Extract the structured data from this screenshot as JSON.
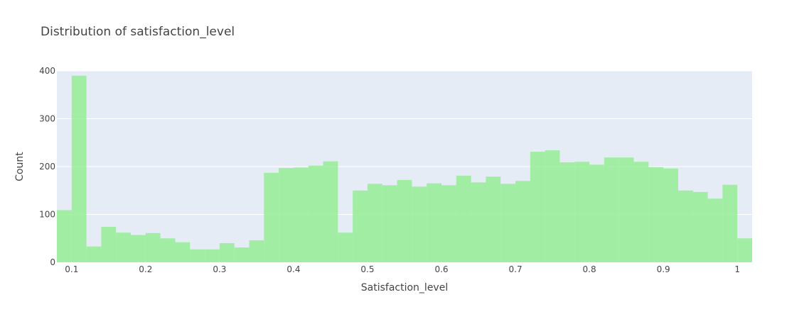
{
  "chart_data": {
    "type": "bar",
    "title": "Distribution of satisfaction_level",
    "xlabel": "Satisfaction_level",
    "ylabel": "Count",
    "xlim": [
      0.08,
      1.02
    ],
    "ylim": [
      0,
      400
    ],
    "x_ticks": [
      0.1,
      0.2,
      0.3,
      0.4,
      0.5,
      0.6,
      0.7,
      0.8,
      0.9,
      1
    ],
    "x_tick_labels": [
      "0.1",
      "0.2",
      "0.3",
      "0.4",
      "0.5",
      "0.6",
      "0.7",
      "0.8",
      "0.9",
      "1"
    ],
    "y_ticks": [
      0,
      100,
      200,
      300,
      400
    ],
    "y_tick_labels": [
      "0",
      "100",
      "200",
      "300",
      "400"
    ],
    "grid": true,
    "bin_width": 0.02,
    "bin_starts": [
      0.08,
      0.1,
      0.12,
      0.14,
      0.16,
      0.18,
      0.2,
      0.22,
      0.24,
      0.26,
      0.28,
      0.3,
      0.32,
      0.34,
      0.36,
      0.38,
      0.4,
      0.42,
      0.44,
      0.46,
      0.48,
      0.5,
      0.52,
      0.54,
      0.56,
      0.58,
      0.6,
      0.62,
      0.64,
      0.66,
      0.68,
      0.7,
      0.72,
      0.74,
      0.76,
      0.78,
      0.8,
      0.82,
      0.84,
      0.86,
      0.88,
      0.9,
      0.92,
      0.94,
      0.96,
      0.98,
      1.0
    ],
    "values": [
      109,
      390,
      33,
      74,
      62,
      57,
      61,
      50,
      42,
      27,
      27,
      40,
      31,
      46,
      187,
      197,
      198,
      202,
      211,
      62,
      150,
      164,
      161,
      172,
      158,
      165,
      161,
      181,
      167,
      179,
      164,
      170,
      231,
      234,
      209,
      210,
      204,
      219,
      219,
      210,
      199,
      196,
      150,
      147,
      133,
      162,
      50
    ],
    "colors": {
      "bar": "#90EE90",
      "plot_bg": "#E5ECF6",
      "grid": "#FFFFFF",
      "text": "#444444"
    }
  }
}
